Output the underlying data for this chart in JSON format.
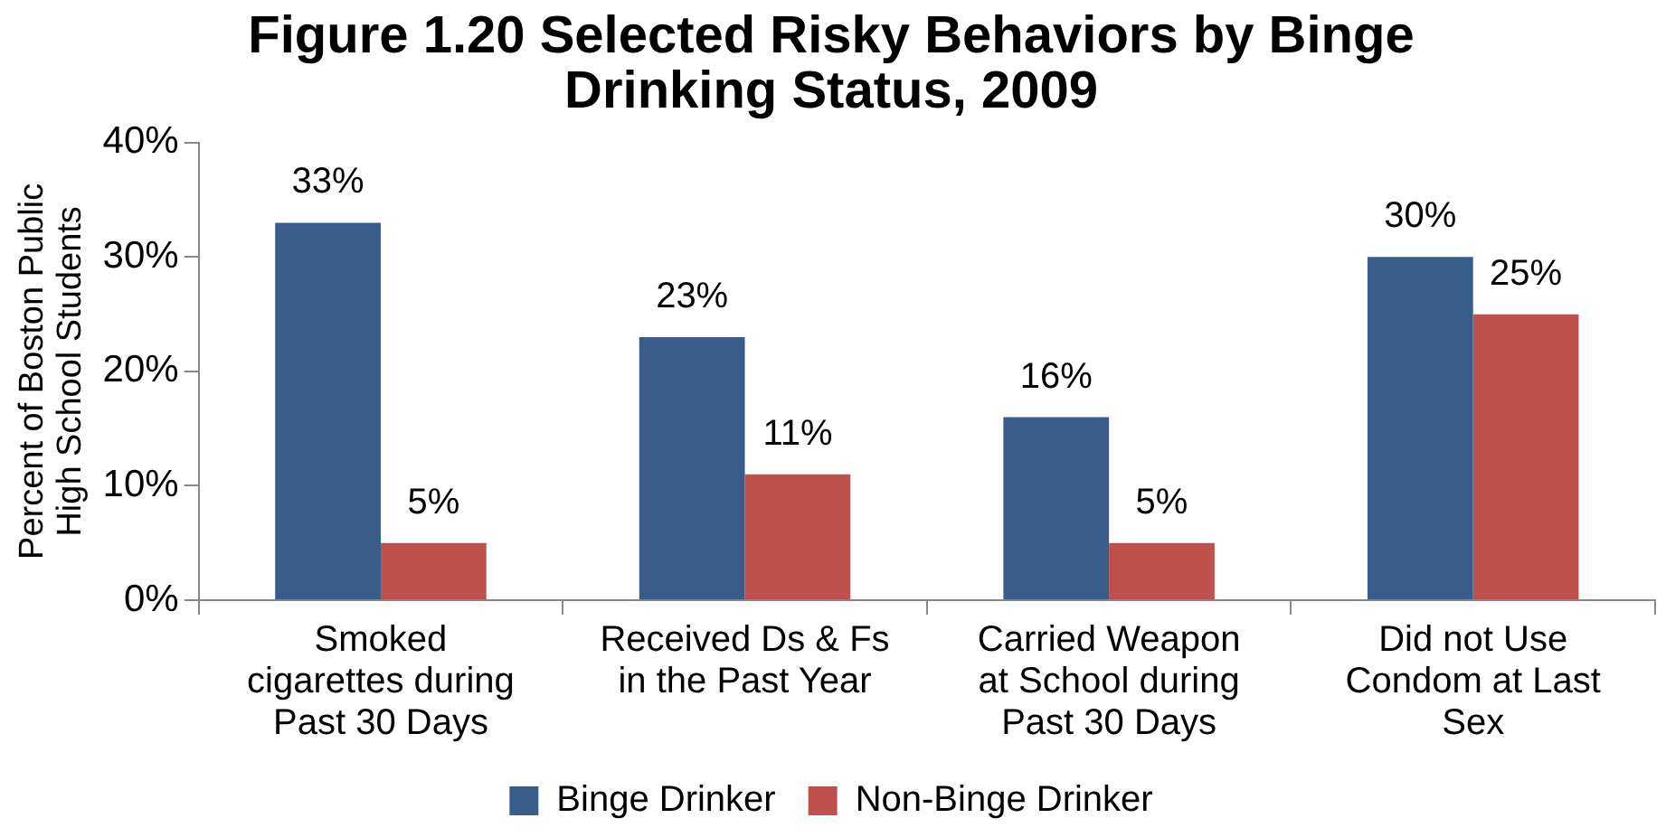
{
  "chart_data": {
    "type": "bar",
    "title": "Figure 1.20 Selected Risky Behaviors by Binge Drinking Status, 2009",
    "ylabel": "Percent of Boston Public High School Students",
    "categories": [
      "Smoked cigarettes during Past 30 Days",
      "Received Ds & Fs in the Past Year",
      "Carried Weapon at School during Past 30 Days",
      "Did not Use Condom at Last Sex"
    ],
    "series": [
      {
        "name": "Binge Drinker",
        "color": "#385d8a",
        "values": [
          33,
          23,
          16,
          30
        ],
        "value_labels": [
          "33%",
          "23%",
          "16%",
          "30%"
        ]
      },
      {
        "name": "Non-Binge Drinker",
        "color": "#c0504d",
        "values": [
          5,
          11,
          5,
          25
        ],
        "value_labels": [
          "5%",
          "11%",
          "5%",
          "25%"
        ]
      }
    ],
    "ylim": [
      0,
      40
    ],
    "yticks": [
      {
        "value": 0,
        "label": "0%"
      },
      {
        "value": 10,
        "label": "10%"
      },
      {
        "value": 20,
        "label": "20%"
      },
      {
        "value": 30,
        "label": "30%"
      },
      {
        "value": 40,
        "label": "40%"
      }
    ],
    "grid": false,
    "legend": "bottom"
  }
}
